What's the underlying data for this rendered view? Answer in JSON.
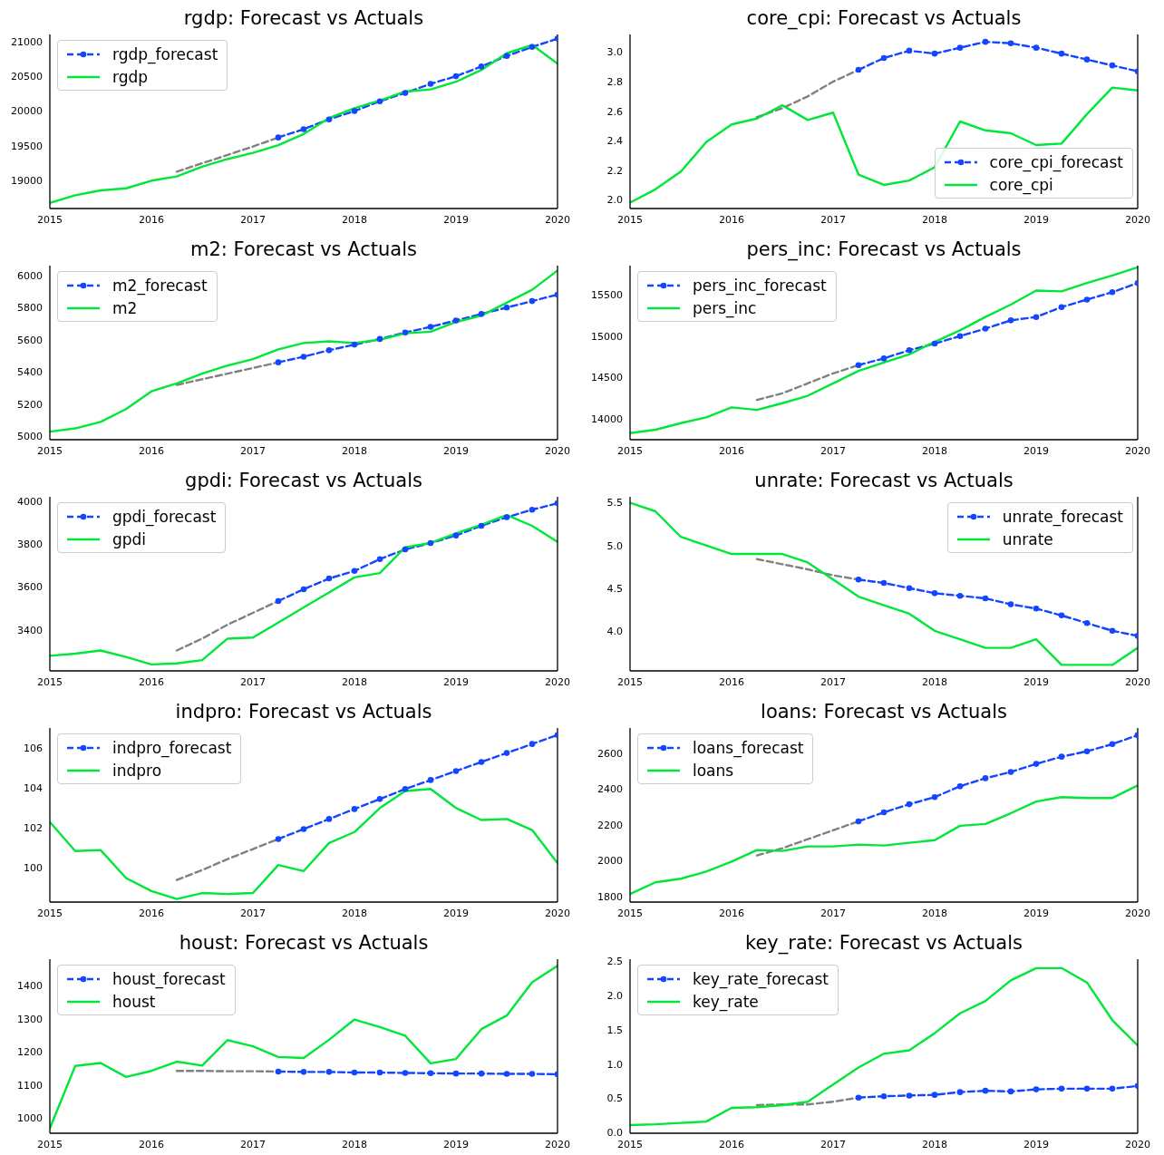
{
  "chart_data": [
    {
      "type": "line",
      "title": "rgdp: Forecast vs Actuals",
      "legend": "top left",
      "xlim": [
        "2015",
        "2020"
      ],
      "xticks": [
        "2015",
        "2016",
        "2017",
        "2018",
        "2019",
        "2020"
      ],
      "ylim": [
        18600,
        21100
      ],
      "yticks": [
        19000,
        19500,
        20000,
        20500,
        21000
      ],
      "series": [
        {
          "color": "#808080",
          "line_style": "dashed",
          "x": [
            "2016-04",
            "2016-07",
            "2016-10",
            "2017-01",
            "2017-04"
          ],
          "values": [
            19130,
            19250,
            19370,
            19490,
            19620
          ]
        },
        {
          "name": "rgdp_forecast",
          "color": "#1446ff",
          "line_style": "dashed",
          "marker": "circle",
          "x": [
            "2017-04",
            "2017-07",
            "2017-10",
            "2018-01",
            "2018-04",
            "2018-07",
            "2018-10",
            "2019-01",
            "2019-04",
            "2019-07",
            "2019-10",
            "2020-01"
          ],
          "values": [
            19620,
            19740,
            19880,
            20000,
            20140,
            20260,
            20390,
            20500,
            20640,
            20790,
            20920,
            21040
          ]
        },
        {
          "name": "rgdp",
          "color": "#00e639",
          "line_style": "solid",
          "x": [
            "2015-01",
            "2015-04",
            "2015-07",
            "2015-10",
            "2016-01",
            "2016-04",
            "2016-07",
            "2016-10",
            "2017-01",
            "2017-04",
            "2017-07",
            "2017-10",
            "2018-01",
            "2018-04",
            "2018-07",
            "2018-10",
            "2019-01",
            "2019-04",
            "2019-07",
            "2019-10",
            "2020-01"
          ],
          "values": [
            18680,
            18790,
            18860,
            18890,
            19000,
            19060,
            19200,
            19310,
            19400,
            19510,
            19670,
            19900,
            20040,
            20150,
            20280,
            20310,
            20420,
            20590,
            20830,
            20950,
            20680
          ]
        }
      ]
    },
    {
      "type": "line",
      "title": "core_cpi: Forecast vs Actuals",
      "legend": "bottom right",
      "xlim": [
        "2015",
        "2020"
      ],
      "xticks": [
        "2015",
        "2016",
        "2017",
        "2018",
        "2019",
        "2020"
      ],
      "ylim": [
        1.94,
        3.12
      ],
      "yticks": [
        {
          "value": 2,
          "label": "2.0"
        },
        {
          "value": 2.2,
          "label": "2.2"
        },
        {
          "value": 2.4,
          "label": "2.4"
        },
        {
          "value": 2.6,
          "label": "2.6"
        },
        {
          "value": 2.8,
          "label": "2.8"
        },
        {
          "value": 3,
          "label": "3.0"
        }
      ],
      "series": [
        {
          "color": "#808080",
          "line_style": "dashed",
          "x": [
            "2016-04",
            "2016-07",
            "2016-10",
            "2017-01",
            "2017-04"
          ],
          "values": [
            2.56,
            2.62,
            2.7,
            2.8,
            2.88
          ]
        },
        {
          "name": "core_cpi_forecast",
          "color": "#1446ff",
          "line_style": "dashed",
          "marker": "circle",
          "x": [
            "2017-04",
            "2017-07",
            "2017-10",
            "2018-01",
            "2018-04",
            "2018-07",
            "2018-10",
            "2019-01",
            "2019-04",
            "2019-07",
            "2019-10",
            "2020-01"
          ],
          "values": [
            2.88,
            2.96,
            3.01,
            2.99,
            3.03,
            3.07,
            3.06,
            3.03,
            2.99,
            2.95,
            2.91,
            2.87
          ]
        },
        {
          "name": "core_cpi",
          "color": "#00e639",
          "line_style": "solid",
          "x": [
            "2015-01",
            "2015-04",
            "2015-07",
            "2015-10",
            "2016-01",
            "2016-04",
            "2016-07",
            "2016-10",
            "2017-01",
            "2017-04",
            "2017-07",
            "2017-10",
            "2018-01",
            "2018-04",
            "2018-07",
            "2018-10",
            "2019-01",
            "2019-04",
            "2019-07",
            "2019-10",
            "2020-01"
          ],
          "values": [
            1.98,
            2.07,
            2.19,
            2.39,
            2.51,
            2.55,
            2.64,
            2.54,
            2.59,
            2.17,
            2.1,
            2.13,
            2.22,
            2.53,
            2.47,
            2.45,
            2.37,
            2.38,
            2.58,
            2.76,
            2.74
          ]
        }
      ]
    },
    {
      "type": "line",
      "title": "m2: Forecast vs Actuals",
      "legend": "top left",
      "xlim": [
        "2015",
        "2020"
      ],
      "xticks": [
        "2015",
        "2016",
        "2017",
        "2018",
        "2019",
        "2020"
      ],
      "ylim": [
        4980,
        6060
      ],
      "yticks": [
        5000,
        5200,
        5400,
        5600,
        5800,
        6000
      ],
      "series": [
        {
          "color": "#808080",
          "line_style": "dashed",
          "x": [
            "2016-04",
            "2016-07",
            "2016-10",
            "2017-01",
            "2017-04"
          ],
          "values": [
            5320,
            5355,
            5390,
            5425,
            5460
          ]
        },
        {
          "name": "m2_forecast",
          "color": "#1446ff",
          "line_style": "dashed",
          "marker": "circle",
          "x": [
            "2017-04",
            "2017-07",
            "2017-10",
            "2018-01",
            "2018-04",
            "2018-07",
            "2018-10",
            "2019-01",
            "2019-04",
            "2019-07",
            "2019-10",
            "2020-01"
          ],
          "values": [
            5460,
            5495,
            5535,
            5570,
            5605,
            5645,
            5680,
            5720,
            5760,
            5800,
            5840,
            5880
          ]
        },
        {
          "name": "m2",
          "color": "#00e639",
          "line_style": "solid",
          "x": [
            "2015-01",
            "2015-04",
            "2015-07",
            "2015-10",
            "2016-01",
            "2016-04",
            "2016-07",
            "2016-10",
            "2017-01",
            "2017-04",
            "2017-07",
            "2017-10",
            "2018-01",
            "2018-04",
            "2018-07",
            "2018-10",
            "2019-01",
            "2019-04",
            "2019-07",
            "2019-10",
            "2020-01"
          ],
          "values": [
            5030,
            5050,
            5090,
            5170,
            5280,
            5330,
            5390,
            5440,
            5480,
            5540,
            5580,
            5590,
            5580,
            5600,
            5640,
            5650,
            5710,
            5750,
            5830,
            5910,
            6030
          ]
        }
      ]
    },
    {
      "type": "line",
      "title": "pers_inc: Forecast vs Actuals",
      "legend": "top left",
      "xlim": [
        "2015",
        "2020"
      ],
      "xticks": [
        "2015",
        "2016",
        "2017",
        "2018",
        "2019",
        "2020"
      ],
      "ylim": [
        13750,
        15850
      ],
      "yticks": [
        14000,
        14500,
        15000,
        15500
      ],
      "series": [
        {
          "color": "#808080",
          "line_style": "dashed",
          "x": [
            "2016-04",
            "2016-07",
            "2016-10",
            "2017-01",
            "2017-04"
          ],
          "values": [
            14230,
            14310,
            14430,
            14550,
            14650
          ]
        },
        {
          "name": "pers_inc_forecast",
          "color": "#1446ff",
          "line_style": "dashed",
          "marker": "circle",
          "x": [
            "2017-04",
            "2017-07",
            "2017-10",
            "2018-01",
            "2018-04",
            "2018-07",
            "2018-10",
            "2019-01",
            "2019-04",
            "2019-07",
            "2019-10",
            "2020-01"
          ],
          "values": [
            14650,
            14730,
            14830,
            14910,
            15000,
            15090,
            15190,
            15230,
            15350,
            15440,
            15530,
            15640
          ]
        },
        {
          "name": "pers_inc",
          "color": "#00e639",
          "line_style": "solid",
          "x": [
            "2015-01",
            "2015-04",
            "2015-07",
            "2015-10",
            "2016-01",
            "2016-04",
            "2016-07",
            "2016-10",
            "2017-01",
            "2017-04",
            "2017-07",
            "2017-10",
            "2018-01",
            "2018-04",
            "2018-07",
            "2018-10",
            "2019-01",
            "2019-04",
            "2019-07",
            "2019-10",
            "2020-01"
          ],
          "values": [
            13830,
            13870,
            13950,
            14020,
            14140,
            14110,
            14190,
            14280,
            14430,
            14580,
            14680,
            14780,
            14930,
            15070,
            15230,
            15380,
            15550,
            15540,
            15640,
            15730,
            15830
          ]
        }
      ]
    },
    {
      "type": "line",
      "title": "gpdi: Forecast vs Actuals",
      "legend": "top left",
      "xlim": [
        "2015",
        "2020"
      ],
      "xticks": [
        "2015",
        "2016",
        "2017",
        "2018",
        "2019",
        "2020"
      ],
      "ylim": [
        3210,
        4020
      ],
      "yticks": [
        3400,
        3600,
        3800,
        4000
      ],
      "series": [
        {
          "color": "#808080",
          "line_style": "dashed",
          "x": [
            "2016-04",
            "2016-07",
            "2016-10",
            "2017-01",
            "2017-04"
          ],
          "values": [
            3305,
            3360,
            3425,
            3480,
            3535
          ]
        },
        {
          "name": "gpdi_forecast",
          "color": "#1446ff",
          "line_style": "dashed",
          "marker": "circle",
          "x": [
            "2017-04",
            "2017-07",
            "2017-10",
            "2018-01",
            "2018-04",
            "2018-07",
            "2018-10",
            "2019-01",
            "2019-04",
            "2019-07",
            "2019-10",
            "2020-01"
          ],
          "values": [
            3535,
            3590,
            3640,
            3675,
            3730,
            3775,
            3805,
            3840,
            3885,
            3925,
            3960,
            3990
          ]
        },
        {
          "name": "gpdi",
          "color": "#00e639",
          "line_style": "solid",
          "x": [
            "2015-01",
            "2015-04",
            "2015-07",
            "2015-10",
            "2016-01",
            "2016-04",
            "2016-07",
            "2016-10",
            "2017-01",
            "2017-04",
            "2017-07",
            "2017-10",
            "2018-01",
            "2018-04",
            "2018-07",
            "2018-10",
            "2019-01",
            "2019-04",
            "2019-07",
            "2019-10",
            "2020-01"
          ],
          "values": [
            3280,
            3290,
            3305,
            3275,
            3240,
            3245,
            3260,
            3360,
            3365,
            3435,
            3505,
            3575,
            3645,
            3665,
            3785,
            3805,
            3850,
            3890,
            3935,
            3885,
            3810
          ]
        }
      ]
    },
    {
      "type": "line",
      "title": "unrate: Forecast vs Actuals",
      "legend": "top right",
      "xlim": [
        "2015",
        "2020"
      ],
      "xticks": [
        "2015",
        "2016",
        "2017",
        "2018",
        "2019",
        "2020"
      ],
      "ylim": [
        3.53,
        5.57
      ],
      "yticks": [
        {
          "value": 4,
          "label": "4.0"
        },
        4.5,
        {
          "value": 5,
          "label": "5.0"
        },
        5.5
      ],
      "series": [
        {
          "color": "#808080",
          "line_style": "dashed",
          "x": [
            "2016-04",
            "2016-07",
            "2016-10",
            "2017-01",
            "2017-04"
          ],
          "values": [
            4.84,
            4.78,
            4.72,
            4.65,
            4.6
          ]
        },
        {
          "name": "unrate_forecast",
          "color": "#1446ff",
          "line_style": "dashed",
          "marker": "circle",
          "x": [
            "2017-04",
            "2017-07",
            "2017-10",
            "2018-01",
            "2018-04",
            "2018-07",
            "2018-10",
            "2019-01",
            "2019-04",
            "2019-07",
            "2019-10",
            "2020-01"
          ],
          "values": [
            4.6,
            4.56,
            4.5,
            4.44,
            4.41,
            4.38,
            4.31,
            4.26,
            4.18,
            4.09,
            4.0,
            3.94
          ]
        },
        {
          "name": "unrate",
          "color": "#00e639",
          "line_style": "solid",
          "x": [
            "2015-01",
            "2015-04",
            "2015-07",
            "2015-10",
            "2016-01",
            "2016-04",
            "2016-07",
            "2016-10",
            "2017-01",
            "2017-04",
            "2017-07",
            "2017-10",
            "2018-01",
            "2018-04",
            "2018-07",
            "2018-10",
            "2019-01",
            "2019-04",
            "2019-07",
            "2019-10",
            "2020-01"
          ],
          "values": [
            5.5,
            5.4,
            5.1,
            5.0,
            4.9,
            4.9,
            4.9,
            4.8,
            4.6,
            4.4,
            4.3,
            4.2,
            4.0,
            3.9,
            3.8,
            3.8,
            3.9,
            3.6,
            3.6,
            3.6,
            3.8
          ]
        }
      ]
    },
    {
      "type": "line",
      "title": "indpro: Forecast vs Actuals",
      "legend": "top left",
      "xlim": [
        "2015",
        "2020"
      ],
      "xticks": [
        "2015",
        "2016",
        "2017",
        "2018",
        "2019",
        "2020"
      ],
      "ylim": [
        98.3,
        107
      ],
      "yticks": [
        100,
        102,
        104,
        106
      ],
      "series": [
        {
          "color": "#808080",
          "line_style": "dashed",
          "x": [
            "2016-04",
            "2016-07",
            "2016-10",
            "2017-01",
            "2017-04"
          ],
          "values": [
            99.4,
            99.9,
            100.45,
            100.95,
            101.45
          ]
        },
        {
          "name": "indpro_forecast",
          "color": "#1446ff",
          "line_style": "dashed",
          "marker": "circle",
          "x": [
            "2017-04",
            "2017-07",
            "2017-10",
            "2018-01",
            "2018-04",
            "2018-07",
            "2018-10",
            "2019-01",
            "2019-04",
            "2019-07",
            "2019-10",
            "2020-01"
          ],
          "values": [
            101.45,
            101.95,
            102.45,
            102.95,
            103.45,
            103.95,
            104.4,
            104.85,
            105.3,
            105.75,
            106.2,
            106.65
          ]
        },
        {
          "name": "indpro",
          "color": "#00e639",
          "line_style": "solid",
          "x": [
            "2015-01",
            "2015-04",
            "2015-07",
            "2015-10",
            "2016-01",
            "2016-04",
            "2016-07",
            "2016-10",
            "2017-01",
            "2017-04",
            "2017-07",
            "2017-10",
            "2018-01",
            "2018-04",
            "2018-07",
            "2018-10",
            "2019-01",
            "2019-04",
            "2019-07",
            "2019-10",
            "2020-01"
          ],
          "values": [
            102.3,
            100.85,
            100.9,
            99.5,
            98.85,
            98.45,
            98.75,
            98.7,
            98.75,
            100.15,
            99.85,
            101.25,
            101.8,
            103.0,
            103.85,
            103.95,
            103.0,
            102.4,
            102.45,
            101.9,
            100.25
          ]
        }
      ]
    },
    {
      "type": "line",
      "title": "loans: Forecast vs Actuals",
      "legend": "top left",
      "xlim": [
        "2015",
        "2020"
      ],
      "xticks": [
        "2015",
        "2016",
        "2017",
        "2018",
        "2019",
        "2020"
      ],
      "ylim": [
        1770,
        2740
      ],
      "yticks": [
        1800,
        2000,
        2200,
        2400,
        2600
      ],
      "series": [
        {
          "color": "#808080",
          "line_style": "dashed",
          "x": [
            "2016-04",
            "2016-07",
            "2016-10",
            "2017-01",
            "2017-04"
          ],
          "values": [
            2030,
            2070,
            2120,
            2170,
            2220
          ]
        },
        {
          "name": "loans_forecast",
          "color": "#1446ff",
          "line_style": "dashed",
          "marker": "circle",
          "x": [
            "2017-04",
            "2017-07",
            "2017-10",
            "2018-01",
            "2018-04",
            "2018-07",
            "2018-10",
            "2019-01",
            "2019-04",
            "2019-07",
            "2019-10",
            "2020-01"
          ],
          "values": [
            2220,
            2270,
            2315,
            2355,
            2415,
            2460,
            2495,
            2540,
            2580,
            2610,
            2650,
            2700
          ]
        },
        {
          "name": "loans",
          "color": "#00e639",
          "line_style": "solid",
          "x": [
            "2015-01",
            "2015-04",
            "2015-07",
            "2015-10",
            "2016-01",
            "2016-04",
            "2016-07",
            "2016-10",
            "2017-01",
            "2017-04",
            "2017-07",
            "2017-10",
            "2018-01",
            "2018-04",
            "2018-07",
            "2018-10",
            "2019-01",
            "2019-04",
            "2019-07",
            "2019-10",
            "2020-01"
          ],
          "values": [
            1815,
            1880,
            1900,
            1940,
            1995,
            2060,
            2055,
            2080,
            2080,
            2090,
            2085,
            2100,
            2115,
            2195,
            2205,
            2265,
            2330,
            2355,
            2350,
            2350,
            2420
          ]
        }
      ]
    },
    {
      "type": "line",
      "title": "houst: Forecast vs Actuals",
      "legend": "top left",
      "xlim": [
        "2015",
        "2020"
      ],
      "xticks": [
        "2015",
        "2016",
        "2017",
        "2018",
        "2019",
        "2020"
      ],
      "ylim": [
        955,
        1480
      ],
      "yticks": [
        1000,
        1100,
        1200,
        1300,
        1400
      ],
      "series": [
        {
          "color": "#808080",
          "line_style": "dashed",
          "x": [
            "2016-04",
            "2016-07",
            "2016-10",
            "2017-01",
            "2017-04"
          ],
          "values": [
            1143,
            1143,
            1142,
            1142,
            1141
          ]
        },
        {
          "name": "houst_forecast",
          "color": "#1446ff",
          "line_style": "dashed",
          "marker": "circle",
          "x": [
            "2017-04",
            "2017-07",
            "2017-10",
            "2018-01",
            "2018-04",
            "2018-07",
            "2018-10",
            "2019-01",
            "2019-04",
            "2019-07",
            "2019-10",
            "2020-01"
          ],
          "values": [
            1141,
            1140,
            1140,
            1138,
            1138,
            1137,
            1136,
            1135,
            1135,
            1134,
            1134,
            1133
          ]
        },
        {
          "name": "houst",
          "color": "#00e639",
          "line_style": "solid",
          "x": [
            "2015-01",
            "2015-04",
            "2015-07",
            "2015-10",
            "2016-01",
            "2016-04",
            "2016-07",
            "2016-10",
            "2017-01",
            "2017-04",
            "2017-07",
            "2017-10",
            "2018-01",
            "2018-04",
            "2018-07",
            "2018-10",
            "2019-01",
            "2019-04",
            "2019-07",
            "2019-10",
            "2020-01"
          ],
          "values": [
            970,
            1158,
            1167,
            1125,
            1143,
            1171,
            1159,
            1236,
            1217,
            1185,
            1182,
            1237,
            1298,
            1275,
            1249,
            1166,
            1179,
            1269,
            1310,
            1410,
            1460
          ]
        }
      ]
    },
    {
      "type": "line",
      "title": "key_rate: Forecast vs Actuals",
      "legend": "top left",
      "xlim": [
        "2015",
        "2020"
      ],
      "xticks": [
        "2015",
        "2016",
        "2017",
        "2018",
        "2019",
        "2020"
      ],
      "ylim": [
        -0.01,
        2.53
      ],
      "yticks": [
        {
          "value": 0,
          "label": "0.0"
        },
        0.5,
        {
          "value": 1,
          "label": "1.0"
        },
        1.5,
        {
          "value": 2,
          "label": "2.0"
        },
        2.5
      ],
      "series": [
        {
          "color": "#808080",
          "line_style": "dashed",
          "x": [
            "2016-04",
            "2016-07",
            "2016-10",
            "2017-01",
            "2017-04"
          ],
          "values": [
            0.4,
            0.41,
            0.41,
            0.45,
            0.51
          ]
        },
        {
          "name": "key_rate_forecast",
          "color": "#1446ff",
          "line_style": "dashed",
          "marker": "circle",
          "x": [
            "2017-04",
            "2017-07",
            "2017-10",
            "2018-01",
            "2018-04",
            "2018-07",
            "2018-10",
            "2019-01",
            "2019-04",
            "2019-07",
            "2019-10",
            "2020-01"
          ],
          "values": [
            0.51,
            0.53,
            0.54,
            0.55,
            0.59,
            0.61,
            0.6,
            0.63,
            0.64,
            0.64,
            0.64,
            0.68
          ]
        },
        {
          "name": "key_rate",
          "color": "#00e639",
          "line_style": "solid",
          "x": [
            "2015-01",
            "2015-04",
            "2015-07",
            "2015-10",
            "2016-01",
            "2016-04",
            "2016-07",
            "2016-10",
            "2017-01",
            "2017-04",
            "2017-07",
            "2017-10",
            "2018-01",
            "2018-04",
            "2018-07",
            "2018-10",
            "2019-01",
            "2019-04",
            "2019-07",
            "2019-10",
            "2020-01"
          ],
          "values": [
            0.11,
            0.12,
            0.14,
            0.16,
            0.36,
            0.37,
            0.4,
            0.45,
            0.7,
            0.95,
            1.15,
            1.2,
            1.45,
            1.74,
            1.92,
            2.22,
            2.4,
            2.4,
            2.19,
            1.64,
            1.27
          ]
        }
      ]
    }
  ]
}
